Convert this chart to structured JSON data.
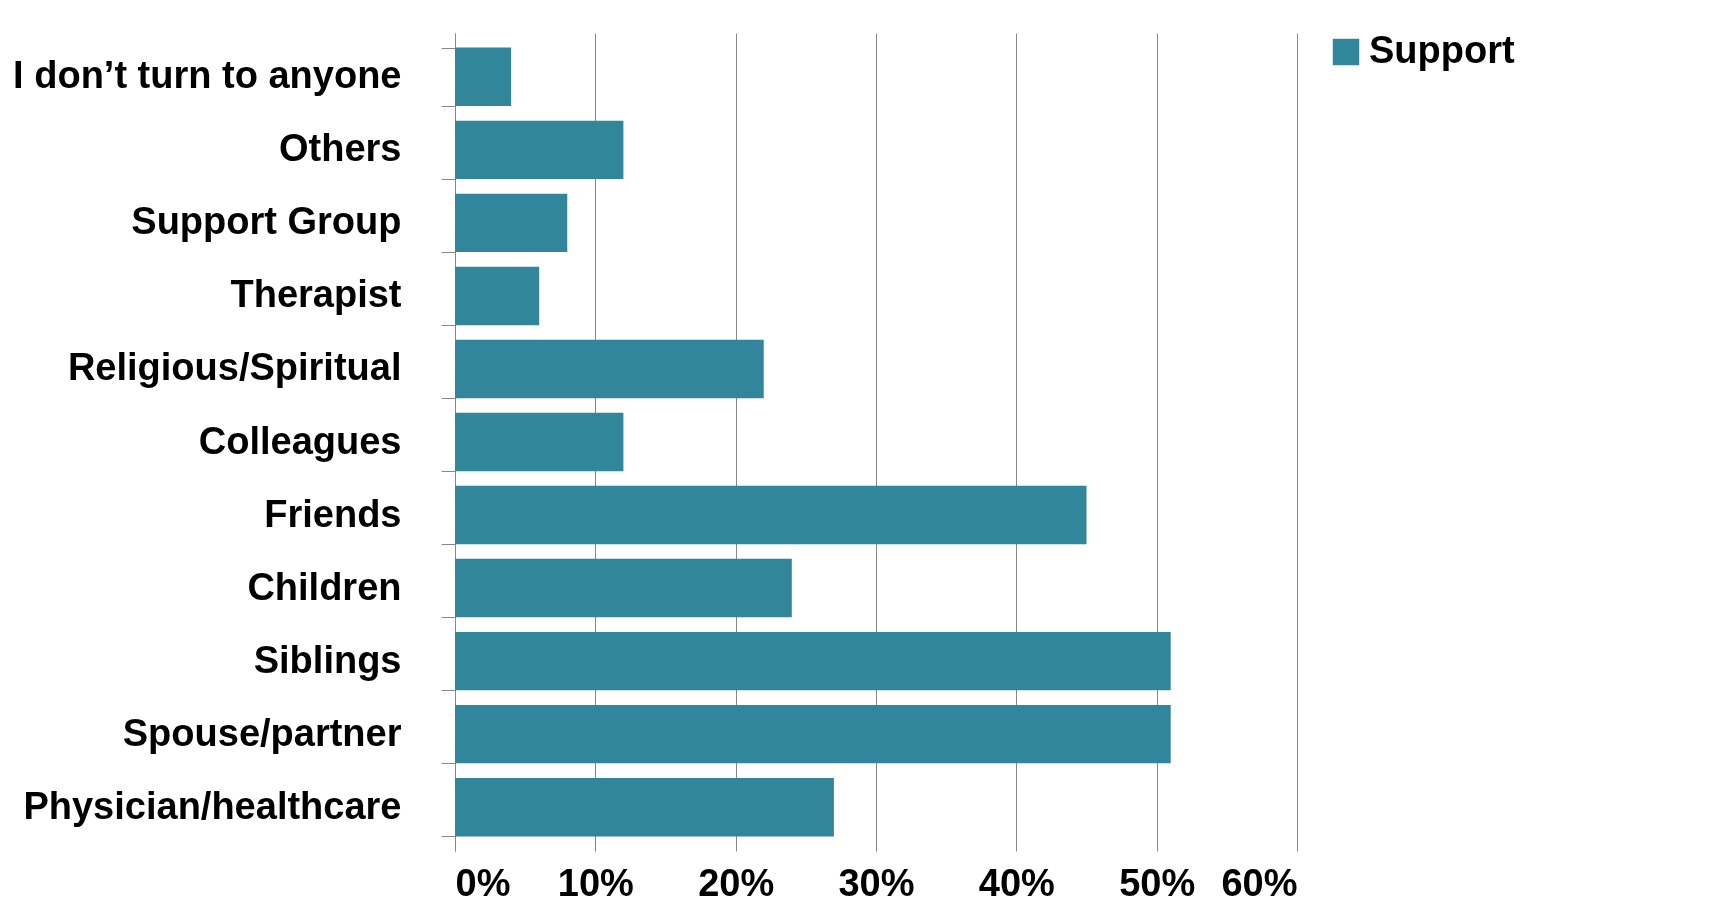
{
  "chart_data": {
    "type": "bar",
    "orientation": "horizontal",
    "categories": [
      "I don’t turn to anyone",
      "Others",
      "Support Group",
      "Therapist",
      "Religious/Spiritual",
      "Colleagues",
      "Friends",
      "Children",
      "Siblings",
      "Spouse/partner",
      "Physician/healthcare"
    ],
    "series": [
      {
        "name": "Support",
        "color": "#31869b",
        "values": [
          4,
          12,
          8,
          6,
          22,
          12,
          45,
          24,
          51,
          51,
          27
        ]
      }
    ],
    "xlim": [
      0,
      60
    ],
    "xticks": [
      {
        "value": 0,
        "label": "0%"
      },
      {
        "value": 10,
        "label": "10%"
      },
      {
        "value": 20,
        "label": "20%"
      },
      {
        "value": 30,
        "label": "30%"
      },
      {
        "value": 40,
        "label": "40%"
      },
      {
        "value": 50,
        "label": "50%"
      },
      {
        "value": 60,
        "label": "60%"
      }
    ],
    "grid": "x",
    "legend": "right"
  }
}
